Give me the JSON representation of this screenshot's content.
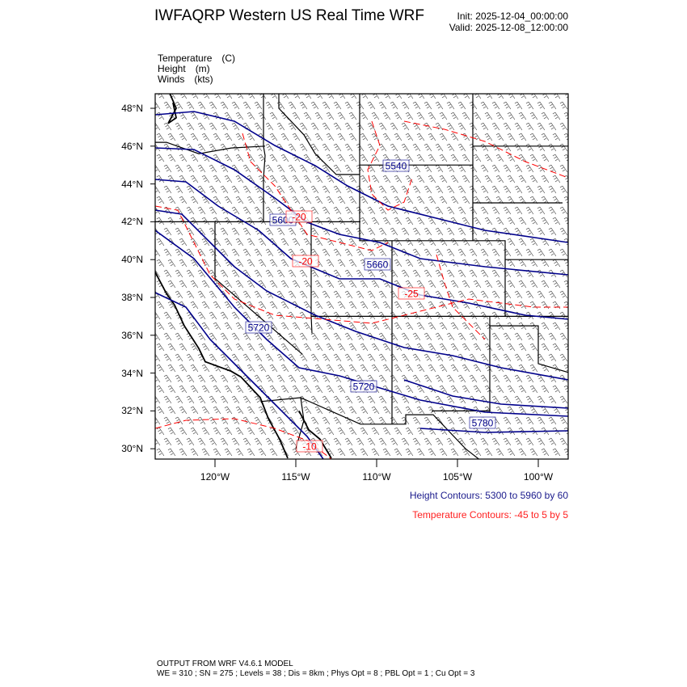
{
  "header": {
    "title": "IWFAQRP Western US Real Time WRF",
    "init": "Init: 2025-12-04_00:00:00",
    "valid": "Valid: 2025-12-08_12:00:00"
  },
  "fields": [
    {
      "name": "Temperature",
      "unit": "(C)"
    },
    {
      "name": "Height",
      "unit": "(m)"
    },
    {
      "name": "Winds",
      "unit": "(kts)"
    }
  ],
  "axes": {
    "lat_ticks": [
      "48°N",
      "46°N",
      "44°N",
      "42°N",
      "40°N",
      "38°N",
      "36°N",
      "34°N",
      "32°N",
      "30°N"
    ],
    "lon_ticks": [
      "120°W",
      "115°W",
      "110°W",
      "105°W",
      "100°W"
    ]
  },
  "contour_labels": {
    "height": [
      "5540",
      "5600",
      "5660",
      "5720",
      "5720",
      "5780"
    ],
    "temperature": [
      "-20",
      "-20",
      "-25",
      "-10"
    ]
  },
  "legend": {
    "height": "Height Contours: 5300 to 5960 by 60",
    "temperature": "Temperature Contours: -45 to 5 by 5"
  },
  "colors": {
    "height_contour": "#00008b",
    "temperature_contour": "#ff0000",
    "barbs": "#000000"
  },
  "footer": {
    "line1": "OUTPUT FROM WRF V4.6.1 MODEL",
    "line2": "WE = 310 ; SN = 275 ; Levels = 38 ; Dis = 8km ; Phys Opt = 8 ; PBL Opt = 1 ; Cu Opt = 3"
  }
}
